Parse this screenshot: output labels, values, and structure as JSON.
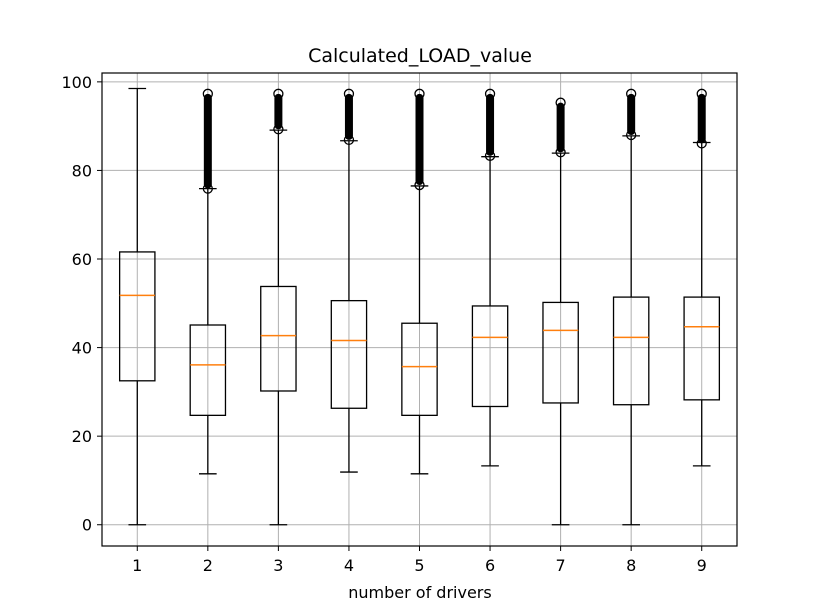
{
  "chart_data": {
    "type": "box",
    "title": "Calculated_LOAD_value",
    "xlabel": "number of drivers",
    "ylabel": "",
    "categories": [
      "1",
      "2",
      "3",
      "4",
      "5",
      "6",
      "7",
      "8",
      "9"
    ],
    "ylim": [
      -4.8,
      102
    ],
    "yticks": [
      0,
      20,
      40,
      60,
      80,
      100
    ],
    "grid": true,
    "boxes": [
      {
        "category": "1",
        "whisker_low": 0.0,
        "q1": 32.5,
        "median": 51.8,
        "q3": 61.6,
        "whisker_high": 98.5,
        "outliers_from": null,
        "outliers_to": null
      },
      {
        "category": "2",
        "whisker_low": 11.5,
        "q1": 24.7,
        "median": 36.1,
        "q3": 45.1,
        "whisker_high": 75.9,
        "outliers_from": 75.9,
        "outliers_to": 97.3
      },
      {
        "category": "3",
        "whisker_low": 0.0,
        "q1": 30.2,
        "median": 42.7,
        "q3": 53.8,
        "whisker_high": 89.1,
        "outliers_from": 89.3,
        "outliers_to": 97.3
      },
      {
        "category": "4",
        "whisker_low": 11.9,
        "q1": 26.3,
        "median": 41.6,
        "q3": 50.6,
        "whisker_high": 86.7,
        "outliers_from": 86.9,
        "outliers_to": 97.3
      },
      {
        "category": "5",
        "whisker_low": 11.5,
        "q1": 24.7,
        "median": 35.7,
        "q3": 45.5,
        "whisker_high": 76.5,
        "outliers_from": 76.7,
        "outliers_to": 97.3
      },
      {
        "category": "6",
        "whisker_low": 13.3,
        "q1": 26.7,
        "median": 42.3,
        "q3": 49.4,
        "whisker_high": 83.1,
        "outliers_from": 83.3,
        "outliers_to": 97.3
      },
      {
        "category": "7",
        "whisker_low": 0.0,
        "q1": 27.5,
        "median": 43.9,
        "q3": 50.2,
        "whisker_high": 83.9,
        "outliers_from": 84.1,
        "outliers_to": 95.3
      },
      {
        "category": "8",
        "whisker_low": 0.0,
        "q1": 27.1,
        "median": 42.3,
        "q3": 51.4,
        "whisker_high": 87.8,
        "outliers_from": 88.0,
        "outliers_to": 97.3
      },
      {
        "category": "9",
        "whisker_low": 13.3,
        "q1": 28.2,
        "median": 44.7,
        "q3": 51.4,
        "whisker_high": 86.3,
        "outliers_from": 86.1,
        "outliers_to": 97.3
      }
    ],
    "colors": {
      "box": "#000000",
      "median": "#ff7f0e",
      "grid": "#b0b0b0",
      "outlier": "#000000"
    }
  }
}
